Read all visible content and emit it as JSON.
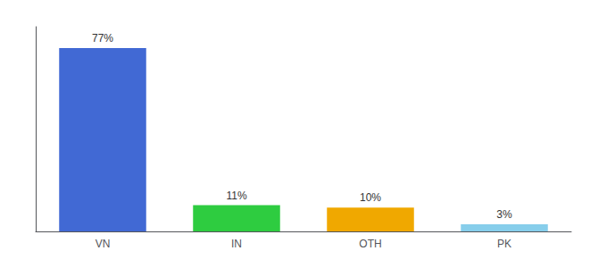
{
  "chart_data": {
    "type": "bar",
    "categories": [
      "VN",
      "IN",
      "OTH",
      "PK"
    ],
    "values": [
      77,
      11,
      10,
      3
    ],
    "value_labels": [
      "77%",
      "11%",
      "10%",
      "3%"
    ],
    "colors": [
      "#4169d4",
      "#2ecc40",
      "#f0a800",
      "#87ceeb"
    ],
    "ylim": [
      0,
      86
    ],
    "data_labels": true,
    "tick_labels": "x",
    "grid": false
  }
}
